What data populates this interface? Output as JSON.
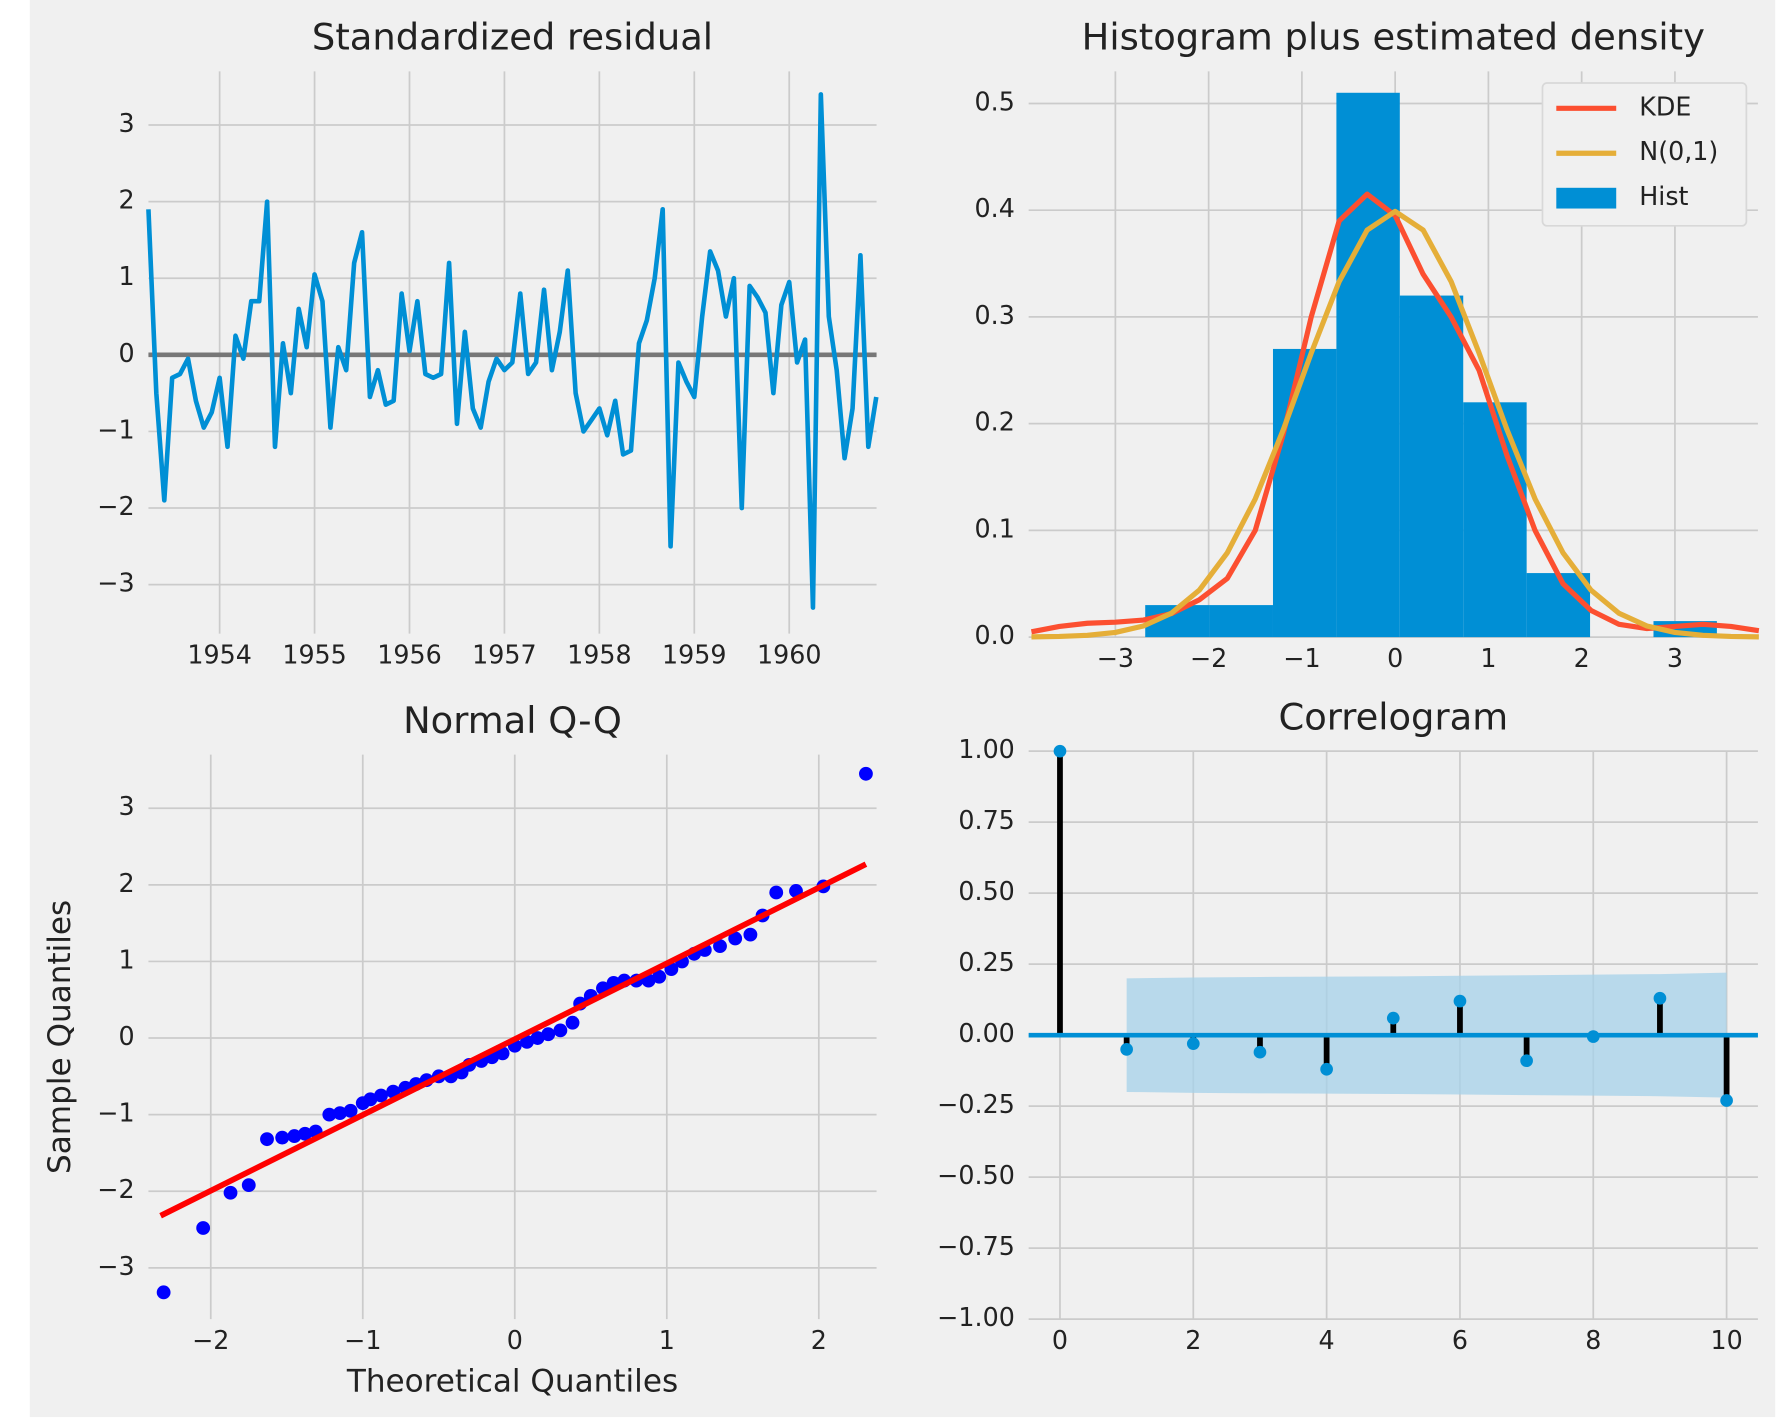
{
  "chart_data": [
    {
      "type": "line",
      "title": "Standardized residual",
      "x": [
        1953.25,
        1953.333,
        1953.417,
        1953.5,
        1953.583,
        1953.667,
        1953.75,
        1953.833,
        1953.917,
        1954,
        1954.083,
        1954.167,
        1954.25,
        1954.333,
        1954.417,
        1954.5,
        1954.583,
        1954.667,
        1954.75,
        1954.833,
        1954.917,
        1955,
        1955.083,
        1955.167,
        1955.25,
        1955.333,
        1955.417,
        1955.5,
        1955.583,
        1955.667,
        1955.75,
        1955.833,
        1955.917,
        1956,
        1956.083,
        1956.167,
        1956.25,
        1956.333,
        1956.417,
        1956.5,
        1956.583,
        1956.667,
        1956.75,
        1956.833,
        1956.917,
        1957,
        1957.083,
        1957.167,
        1957.25,
        1957.333,
        1957.417,
        1957.5,
        1957.583,
        1957.667,
        1957.75,
        1957.833,
        1957.917,
        1958,
        1958.083,
        1958.167,
        1958.25,
        1958.333,
        1958.417,
        1958.5,
        1958.583,
        1958.667,
        1958.75,
        1958.833,
        1958.917,
        1959,
        1959.083,
        1959.167,
        1959.25,
        1959.333,
        1959.417,
        1959.5,
        1959.583,
        1959.667,
        1959.75,
        1959.833,
        1959.917,
        1960,
        1960.083,
        1960.167,
        1960.25,
        1960.333,
        1960.417,
        1960.5,
        1960.583,
        1960.667,
        1960.75,
        1960.833,
        1960.917
      ],
      "series": [
        {
          "color": "#008fd5",
          "values": [
            1.9,
            -0.5,
            -1.9,
            -0.3,
            -0.25,
            -0.05,
            -0.6,
            -0.95,
            -0.75,
            -0.3,
            -1.2,
            0.25,
            -0.05,
            0.7,
            0.7,
            2.0,
            -1.2,
            0.15,
            -0.5,
            0.6,
            0.1,
            1.05,
            0.7,
            -0.95,
            0.1,
            -0.2,
            1.2,
            1.6,
            -0.55,
            -0.2,
            -0.65,
            -0.6,
            0.8,
            0.05,
            0.7,
            -0.25,
            -0.3,
            -0.25,
            1.2,
            -0.9,
            0.3,
            -0.7,
            -0.95,
            -0.35,
            -0.05,
            -0.2,
            -0.1,
            0.8,
            -0.25,
            -0.1,
            0.85,
            -0.2,
            0.3,
            1.1,
            -0.5,
            -1.0,
            -0.85,
            -0.7,
            -1.05,
            -0.6,
            -1.3,
            -1.25,
            0.15,
            0.45,
            1.0,
            1.9,
            -2.5,
            -0.1,
            -0.35,
            -0.55,
            0.5,
            1.35,
            1.1,
            0.5,
            1.0,
            -2.0,
            0.9,
            0.75,
            0.55,
            -0.5,
            0.65,
            0.95,
            -0.1,
            0.2,
            -3.3,
            3.4,
            0.5,
            -0.2,
            -1.35,
            -0.7,
            1.3,
            -1.2,
            -0.55
          ]
        }
      ],
      "hline": 0,
      "hline_color": "#777777",
      "xlim": [
        1953.25,
        1960.92
      ],
      "ylim": [
        -3.64,
        3.7
      ],
      "xticks": [
        1954,
        1955,
        1956,
        1957,
        1958,
        1959,
        1960
      ],
      "yticks": [
        {
          "value": -3,
          "label": "−3"
        },
        {
          "value": -2,
          "label": "−2"
        },
        {
          "value": -1,
          "label": "−1"
        },
        0,
        1,
        2,
        3
      ],
      "grid": true
    },
    {
      "type": "histogram",
      "title": "Histogram plus estimated density",
      "hist": {
        "name": "Hist",
        "color": "#008fd5",
        "bins": [
          -3.36,
          -2.68,
          -1.99,
          -1.31,
          -0.63,
          0.05,
          0.73,
          1.41,
          2.09,
          2.77,
          3.45
        ],
        "values": [
          0,
          0.03,
          0.03,
          0.27,
          0.51,
          0.32,
          0.22,
          0.06,
          0,
          0.015
        ]
      },
      "x": [
        -3.9,
        -3.6,
        -3.3,
        -3.0,
        -2.7,
        -2.4,
        -2.1,
        -1.8,
        -1.5,
        -1.2,
        -0.9,
        -0.6,
        -0.3,
        0,
        0.3,
        0.6,
        0.9,
        1.2,
        1.5,
        1.8,
        2.1,
        2.4,
        2.7,
        3.0,
        3.3,
        3.6,
        3.9
      ],
      "series": [
        {
          "name": "KDE",
          "color": "#fc4f30",
          "values": [
            0.005,
            0.01,
            0.013,
            0.014,
            0.016,
            0.022,
            0.035,
            0.055,
            0.1,
            0.19,
            0.3,
            0.39,
            0.415,
            0.395,
            0.34,
            0.3,
            0.25,
            0.17,
            0.1,
            0.05,
            0.025,
            0.012,
            0.008,
            0.01,
            0.012,
            0.01,
            0.006
          ]
        },
        {
          "name": "N(0,1)",
          "color": "#e5ae38",
          "values": [
            0.0002,
            0.0006,
            0.0017,
            0.0044,
            0.0104,
            0.0224,
            0.044,
            0.079,
            0.1295,
            0.1942,
            0.2661,
            0.3332,
            0.3814,
            0.3989,
            0.3814,
            0.3332,
            0.2661,
            0.1942,
            0.1295,
            0.079,
            0.044,
            0.0224,
            0.0104,
            0.0044,
            0.0017,
            0.0006,
            0.0002
          ]
        }
      ],
      "xlim": [
        -3.93,
        3.89
      ],
      "ylim": [
        0,
        0.53
      ],
      "xticks": [
        {
          "value": -3,
          "label": "−3"
        },
        {
          "value": -2,
          "label": "−2"
        },
        {
          "value": -1,
          "label": "−1"
        },
        0,
        1,
        2,
        3
      ],
      "yticks": [
        {
          "value": 0,
          "label": "0.0"
        },
        0.1,
        0.2,
        0.3,
        0.4,
        0.5
      ],
      "grid": true,
      "legend": "upper right"
    },
    {
      "type": "scatter",
      "title": "Normal Q-Q",
      "xlabel": "Theoretical Quantiles",
      "ylabel": "Sample Quantiles",
      "color": "#0000ff",
      "x": [
        -2.31,
        -2.05,
        -1.87,
        -1.75,
        -1.63,
        -1.53,
        -1.45,
        -1.38,
        -1.31,
        -1.22,
        -1.15,
        -1.08,
        -1.0,
        -0.95,
        -0.88,
        -0.8,
        -0.72,
        -0.65,
        -0.58,
        -0.5,
        -0.42,
        -0.35,
        -0.3,
        -0.22,
        -0.15,
        -0.08,
        0,
        0.08,
        0.15,
        0.22,
        0.3,
        0.38,
        0.43,
        0.5,
        0.58,
        0.65,
        0.72,
        0.8,
        0.88,
        0.95,
        1.03,
        1.1,
        1.18,
        1.25,
        1.35,
        1.45,
        1.55,
        1.63,
        1.72,
        1.85,
        2.03,
        2.31
      ],
      "values": [
        -3.32,
        -2.48,
        -2.02,
        -1.92,
        -1.32,
        -1.3,
        -1.28,
        -1.25,
        -1.22,
        -1.0,
        -0.98,
        -0.95,
        -0.85,
        -0.8,
        -0.75,
        -0.7,
        -0.65,
        -0.6,
        -0.55,
        -0.5,
        -0.5,
        -0.45,
        -0.35,
        -0.3,
        -0.25,
        -0.2,
        -0.1,
        -0.05,
        0,
        0.05,
        0.1,
        0.2,
        0.45,
        0.55,
        0.65,
        0.72,
        0.75,
        0.75,
        0.75,
        0.8,
        0.9,
        1.0,
        1.1,
        1.15,
        1.2,
        1.3,
        1.35,
        1.6,
        1.9,
        1.92,
        1.98,
        3.45
      ],
      "fit_line": {
        "color": "#ff0000",
        "x": [
          -2.33,
          2.31
        ],
        "values": [
          -2.32,
          2.27
        ]
      },
      "xlim": [
        -2.41,
        2.38
      ],
      "ylim": [
        -3.67,
        3.7
      ],
      "xticks": [
        {
          "value": -2,
          "label": "−2"
        },
        {
          "value": -1,
          "label": "−1"
        },
        0,
        1,
        2
      ],
      "yticks": [
        {
          "value": -3,
          "label": "−3"
        },
        {
          "value": -2,
          "label": "−2"
        },
        {
          "value": -1,
          "label": "−1"
        },
        0,
        1,
        2,
        3
      ],
      "grid": true
    },
    {
      "type": "stem",
      "title": "Correlogram",
      "x": [
        0,
        1,
        2,
        3,
        4,
        5,
        6,
        7,
        8,
        9,
        10
      ],
      "values": [
        1.0,
        -0.05,
        -0.03,
        -0.06,
        -0.12,
        0.06,
        0.12,
        -0.09,
        -0.005,
        0.13,
        -0.23
      ],
      "color": "#008fd5",
      "stem_color": "#000000",
      "confidence": {
        "color": "#a6d2ea",
        "x": [
          1,
          2,
          3,
          4,
          5,
          6,
          7,
          8,
          9,
          10
        ],
        "values": [
          0.2,
          0.203,
          0.205,
          0.206,
          0.207,
          0.209,
          0.211,
          0.213,
          0.215,
          0.22
        ]
      },
      "hline": 0,
      "hline_color": "#008fd5",
      "xlim": [
        -0.47,
        10.47
      ],
      "ylim": [
        -1,
        1
      ],
      "xticks": [
        0,
        2,
        4,
        6,
        8,
        10
      ],
      "yticks": [
        {
          "value": -1,
          "label": "−1.00"
        },
        {
          "value": -0.75,
          "label": "−0.75"
        },
        {
          "value": -0.5,
          "label": "−0.50"
        },
        {
          "value": -0.25,
          "label": "−0.25"
        },
        {
          "value": 0,
          "label": "0.00"
        },
        {
          "value": 0.25,
          "label": "0.25"
        },
        {
          "value": 0.5,
          "label": "0.50"
        },
        {
          "value": 0.75,
          "label": "0.75"
        },
        {
          "value": 1,
          "label": "1.00"
        }
      ],
      "grid": true
    }
  ]
}
